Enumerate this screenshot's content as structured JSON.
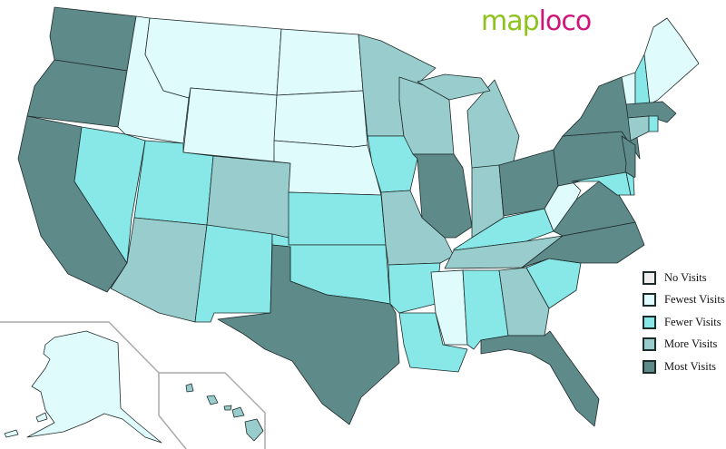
{
  "logo": {
    "part1": "map",
    "part2": "loco"
  },
  "colors": {
    "none": "#eeeeee",
    "fewest": "#e0fbfb",
    "fewer": "#88e8e8",
    "more": "#99cccc",
    "most": "#5f8a8a",
    "border": "#1d2b2b",
    "inset_line": "#aaaaaa"
  },
  "legend": [
    {
      "key": "none",
      "label": "No Visits"
    },
    {
      "key": "fewest",
      "label": "Fewest Visits"
    },
    {
      "key": "fewer",
      "label": "Fewer Visits"
    },
    {
      "key": "more",
      "label": "More Visits"
    },
    {
      "key": "most",
      "label": "Most Visits"
    }
  ],
  "states": {
    "WA": "most",
    "OR": "most",
    "CA": "most",
    "TX": "most",
    "IL": "most",
    "OH": "most",
    "NY": "most",
    "PA": "most",
    "NJ": "most",
    "MA": "most",
    "VA": "most",
    "NC": "most",
    "FL": "most",
    "MN": "more",
    "WI": "more",
    "MI": "more",
    "IN": "more",
    "MO": "more",
    "TN": "more",
    "GA": "more",
    "AZ": "more",
    "CO": "more",
    "CT": "more",
    "HI": "more",
    "NV": "fewer",
    "UT": "fewer",
    "NM": "fewer",
    "KS": "fewer",
    "OK": "fewer",
    "IA": "fewer",
    "AR": "fewer",
    "LA": "fewer",
    "KY": "fewer",
    "AL": "fewer",
    "SC": "fewer",
    "MD": "fewer",
    "DE": "fewer",
    "NH": "fewer",
    "RI": "fewer",
    "ID": "fewest",
    "MT": "fewest",
    "WY": "fewest",
    "ND": "fewest",
    "SD": "fewest",
    "NE": "fewest",
    "MS": "fewest",
    "WV": "fewest",
    "VT": "fewest",
    "ME": "fewest",
    "AK": "fewest"
  }
}
